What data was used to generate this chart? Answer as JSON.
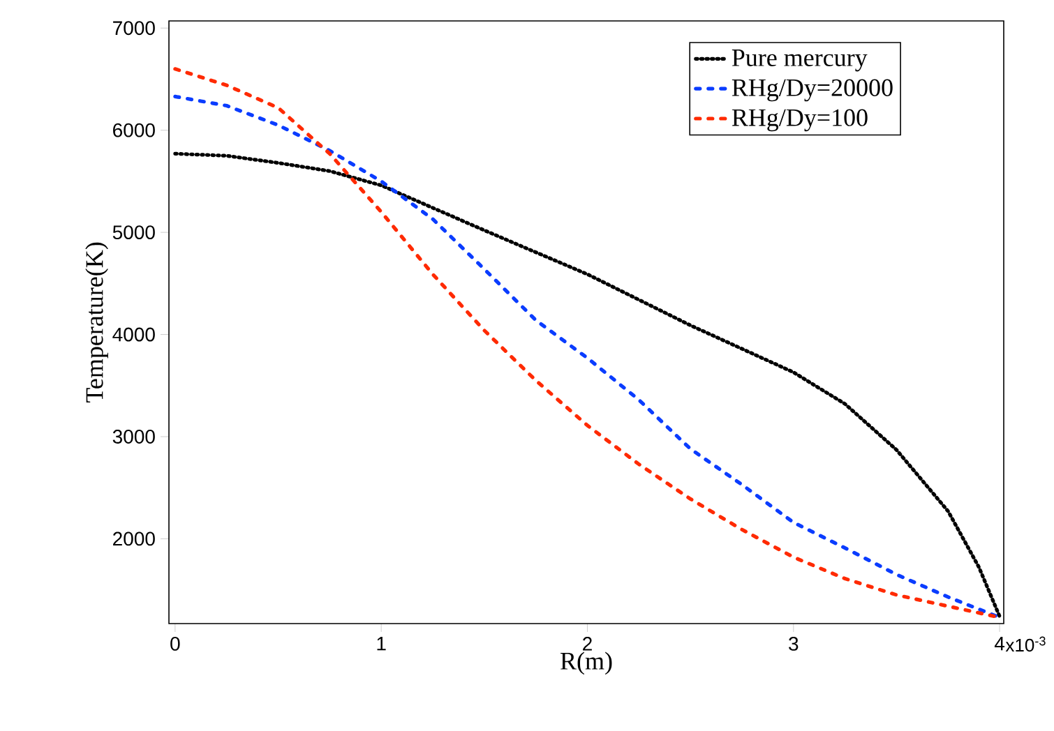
{
  "chart_data": {
    "type": "line",
    "xlabel": "R(m)",
    "ylabel": "Temperature(K)",
    "xlim": [
      -0.03,
      4.02
    ],
    "ylim": [
      1170,
      7070
    ],
    "xticks": [
      0,
      1,
      2,
      3,
      4
    ],
    "annotations": [
      "x10$^{-3}$"
    ],
    "yticks": [
      2000,
      3000,
      4000,
      5000,
      6000,
      7000
    ],
    "legend": "top right",
    "grid": false,
    "series": [
      {
        "name": "Pure mercury",
        "color": "#000000",
        "line_style": "dotted",
        "x": [
          0,
          0.25,
          0.5,
          0.75,
          1,
          1.5,
          2,
          2.5,
          3,
          3.25,
          3.5,
          3.75,
          3.9,
          4
        ],
        "values": [
          5770,
          5750,
          5680,
          5600,
          5460,
          5020,
          4590,
          4090,
          3630,
          3320,
          2870,
          2270,
          1720,
          1240
        ]
      },
      {
        "name": "RHg/Dy=20000",
        "color": "#0a3cff",
        "line_style": "dashed",
        "x": [
          0,
          0.25,
          0.5,
          0.75,
          1,
          1.25,
          1.5,
          1.75,
          2,
          2.25,
          2.5,
          2.75,
          3,
          3.25,
          3.5,
          3.75,
          4
        ],
        "values": [
          6330,
          6240,
          6050,
          5800,
          5500,
          5130,
          4640,
          4140,
          3770,
          3360,
          2880,
          2530,
          2160,
          1910,
          1650,
          1430,
          1230
        ]
      },
      {
        "name": "RHg/Dy=100",
        "color": "#ff2a00",
        "line_style": "dashed",
        "x": [
          0,
          0.25,
          0.5,
          0.75,
          1,
          1.25,
          1.5,
          1.75,
          2,
          2.25,
          2.5,
          2.75,
          3,
          3.25,
          3.5,
          3.75,
          4
        ],
        "values": [
          6600,
          6440,
          6220,
          5770,
          5200,
          4590,
          4040,
          3550,
          3110,
          2730,
          2390,
          2090,
          1820,
          1610,
          1450,
          1340,
          1230
        ]
      }
    ]
  }
}
